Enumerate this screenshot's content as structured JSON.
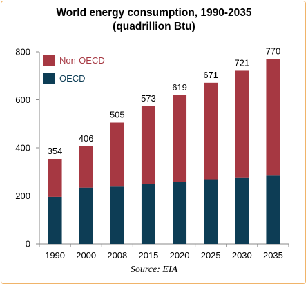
{
  "chart_data": {
    "type": "bar",
    "stacked": true,
    "title": "World energy consumption, 1990-2035",
    "subtitle": "(quadrillion Btu)",
    "source": "Source: EIA",
    "categories": [
      "1990",
      "2000",
      "2008",
      "2015",
      "2020",
      "2025",
      "2030",
      "2035"
    ],
    "series": [
      {
        "name": "OECD",
        "color": "#0d3d55",
        "values": [
          196,
          234,
          241,
          250,
          257,
          269,
          277,
          284
        ]
      },
      {
        "name": "Non-OECD",
        "color": "#a63842",
        "values": [
          158,
          172,
          264,
          323,
          362,
          402,
          444,
          486
        ]
      }
    ],
    "totals": [
      "354",
      "406",
      "505",
      "573",
      "619",
      "671",
      "721",
      "770"
    ],
    "ylim": [
      0,
      800
    ],
    "yticks": [
      "0",
      "200",
      "400",
      "600",
      "800"
    ],
    "ytick_values": [
      0,
      200,
      400,
      600,
      800
    ],
    "legend_position": "top-left",
    "legend_text_colors": {
      "Non-OECD": "#a63842",
      "OECD": "#0d3d55"
    },
    "grid": false
  }
}
